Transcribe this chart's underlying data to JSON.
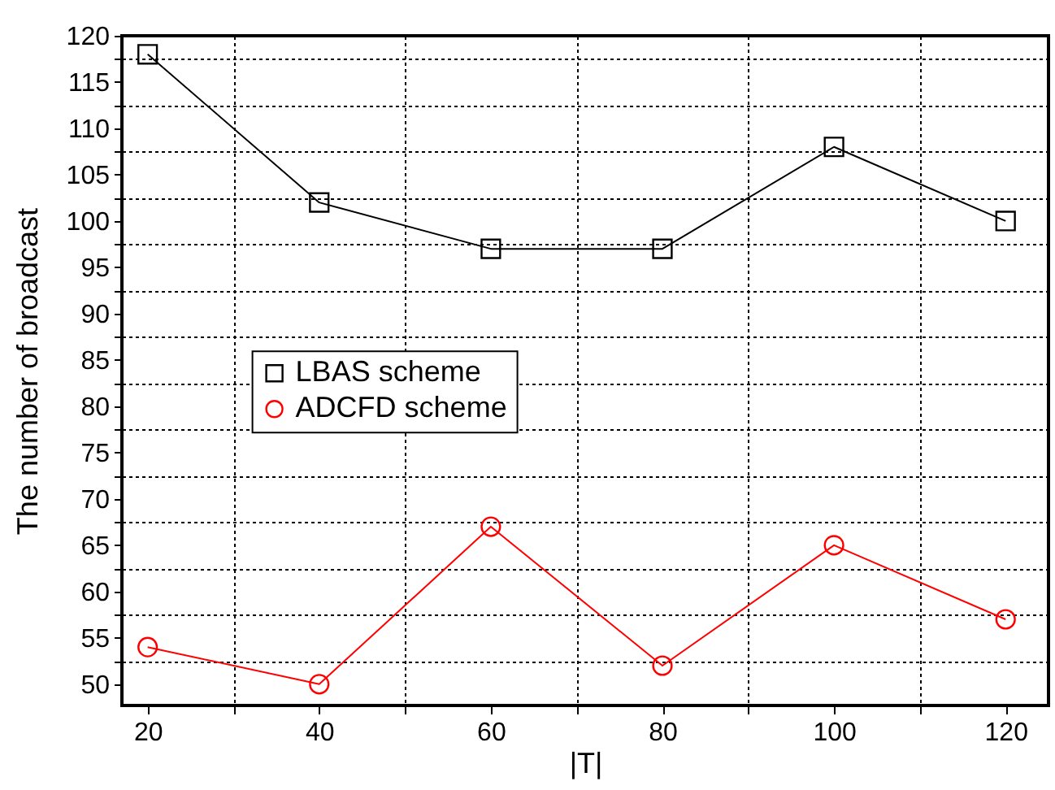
{
  "chart_data": {
    "type": "line",
    "xlabel": "|T|",
    "ylabel": "The number of broadcast",
    "x": [
      20,
      40,
      60,
      80,
      100,
      120
    ],
    "series": [
      {
        "name": "LBAS scheme",
        "color": "#000000",
        "marker": "square",
        "values": [
          118,
          102,
          97,
          97,
          108,
          100
        ]
      },
      {
        "name": "ADCFD scheme",
        "color": "#ff0000",
        "marker": "circle",
        "values": [
          54,
          50,
          67,
          52,
          65,
          57
        ]
      }
    ],
    "xlim": [
      17,
      125
    ],
    "xticks": [
      20,
      {
        "value": 30,
        "label": null
      },
      40,
      {
        "value": 50,
        "label": null
      },
      60,
      {
        "value": 70,
        "label": null
      },
      80,
      {
        "value": 90,
        "label": null
      },
      100,
      {
        "value": 110,
        "label": null
      },
      120
    ],
    "ylim": [
      47.7,
      120
    ],
    "yticks": [
      50,
      {
        "value": 52.5,
        "label": null
      },
      55,
      {
        "value": 57.5,
        "label": null
      },
      60,
      {
        "value": 62.5,
        "label": null
      },
      65,
      {
        "value": 67.5,
        "label": null
      },
      70,
      {
        "value": 72.5,
        "label": null
      },
      75,
      {
        "value": 77.5,
        "label": null
      },
      80,
      {
        "value": 82.5,
        "label": null
      },
      85,
      {
        "value": 87.5,
        "label": null
      },
      90,
      {
        "value": 92.5,
        "label": null
      },
      95,
      {
        "value": 97.5,
        "label": null
      },
      100,
      {
        "value": 102.5,
        "label": null
      },
      105,
      {
        "value": 107.5,
        "label": null
      },
      110,
      {
        "value": 112.5,
        "label": null
      },
      115,
      {
        "value": 117.5,
        "label": null
      },
      120
    ],
    "grid": true,
    "legend": "center left",
    "line_style": "solid"
  }
}
